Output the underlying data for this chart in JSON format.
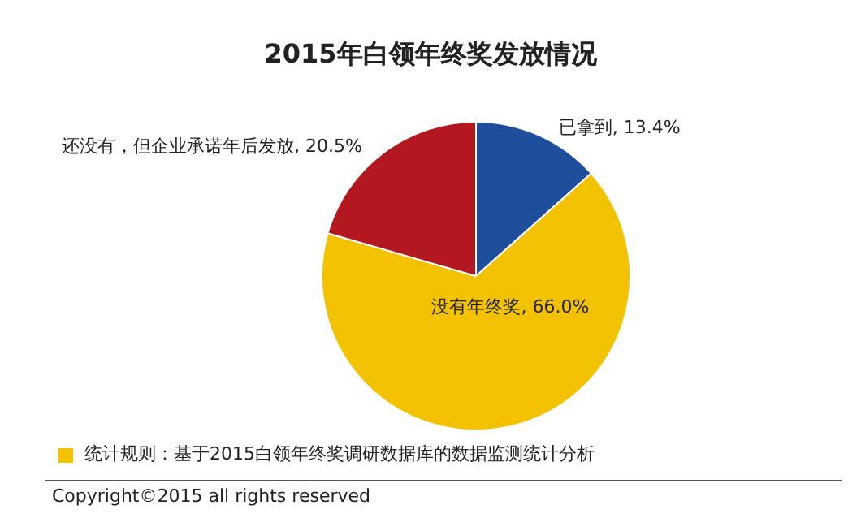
{
  "chart_data": {
    "type": "pie",
    "title": "2015年白领年终奖发放情况",
    "categories": [
      "已拿到",
      "没有年终奖",
      "还没有，但企业承诺年后发放"
    ],
    "values": [
      13.4,
      66.0,
      20.5
    ],
    "colors": [
      "#1f4e9c",
      "#f2c200",
      "#b3171f"
    ],
    "value_labels": [
      ", 13.4%",
      ", 66.0%",
      ", 20.5%"
    ],
    "legend": false,
    "annotations": [
      "统计规则：基于2015白领年终奖调研数据库的数据监测统计分析",
      "Copyright©2015 all rights reserved"
    ]
  }
}
